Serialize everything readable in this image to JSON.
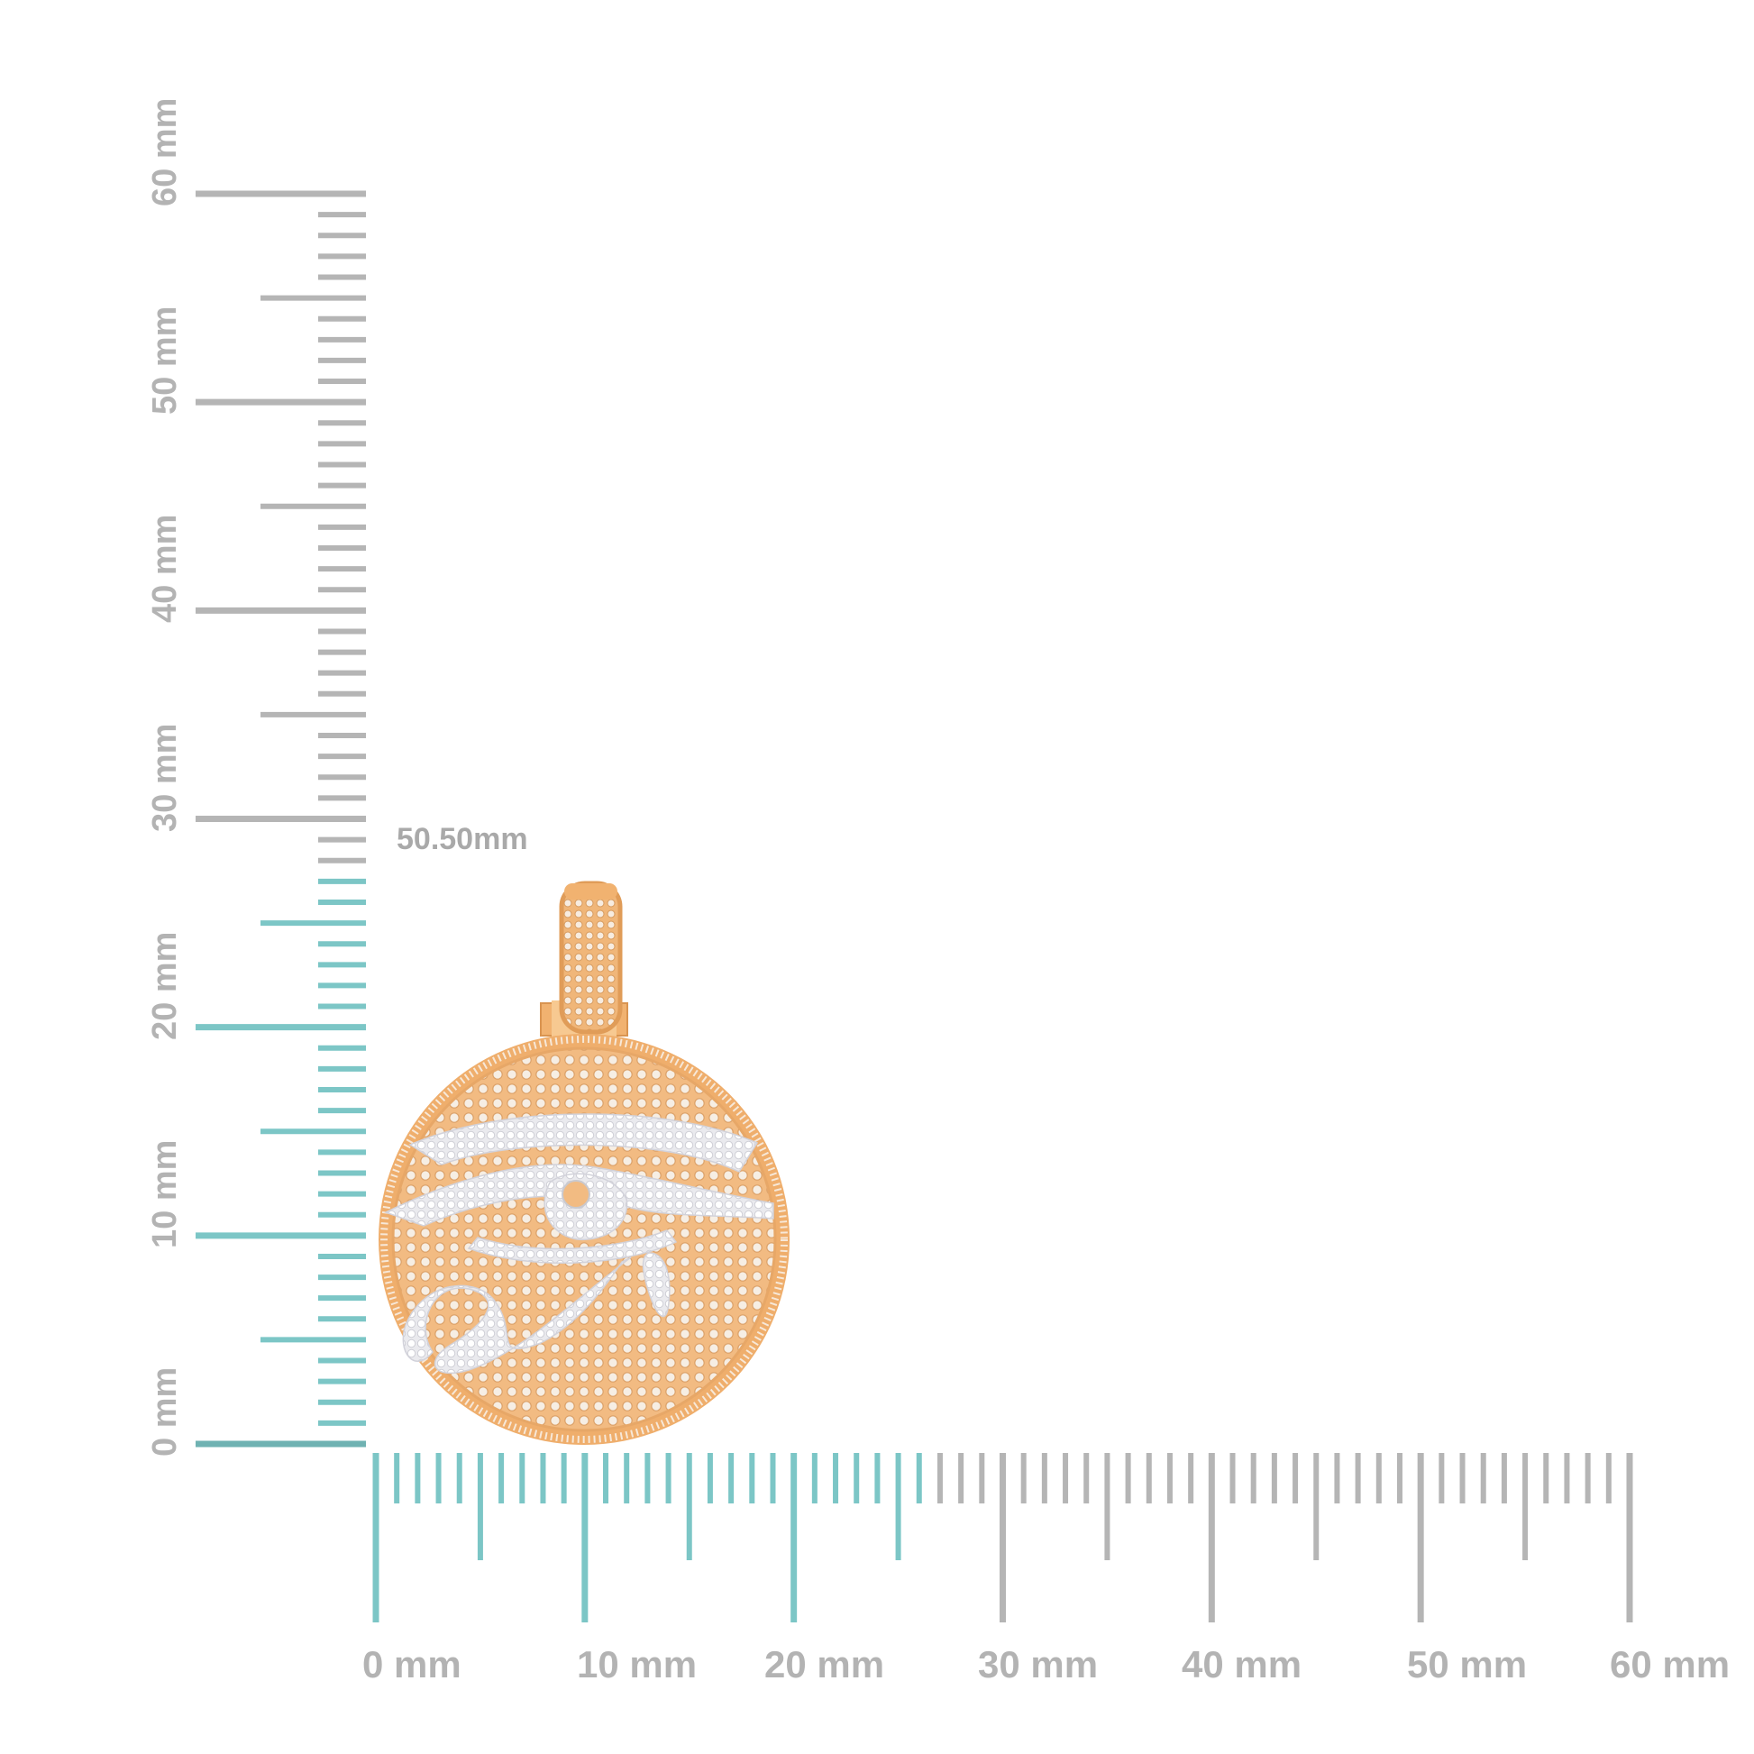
{
  "dimension_label": "50.50mm",
  "vertical_ruler": {
    "labels": [
      "0 mm",
      "10 mm",
      "20 mm",
      "30 mm",
      "40 mm",
      "50 mm",
      "60 mm"
    ],
    "highlight_mm": 27
  },
  "horizontal_ruler": {
    "labels": [
      "0 mm",
      "10 mm",
      "20 mm",
      "30 mm",
      "40 mm",
      "50 mm",
      "60 mm"
    ],
    "highlight_mm": 26
  },
  "colors": {
    "ruler_gray": "#b5b5b5",
    "ruler_teal": "#7cc6c6",
    "ruler_teal_dark": "#6fb2b2",
    "gold": "#f2b77a",
    "gold_dark": "#e3a05e",
    "diamond": "#f4f4f6"
  },
  "product": {
    "name_icon": "eye-of-horus-pendant-icon"
  }
}
